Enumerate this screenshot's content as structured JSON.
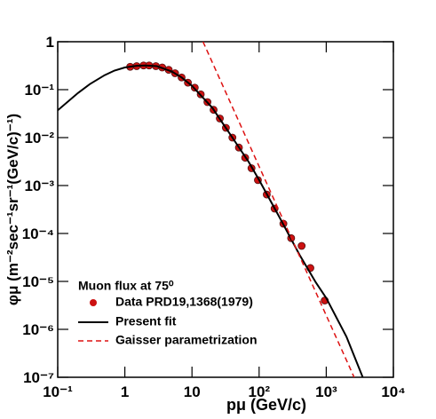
{
  "chart_data": {
    "type": "line",
    "xlabel": "pμ (GeV/c)",
    "ylabel": "φμ (m⁻²sec⁻¹sr⁻¹(GeV/c)⁻¹)",
    "legend_title": "Muon flux at 75⁰",
    "xscale": "log",
    "yscale": "log",
    "xlim": [
      0.1,
      10000
    ],
    "ylim": [
      1e-07,
      1
    ],
    "xticks": [
      {
        "value": 0.1,
        "label": "10⁻¹"
      },
      1,
      10,
      {
        "value": 100,
        "label": "10²"
      },
      {
        "value": 1000,
        "label": "10³"
      },
      {
        "value": 10000,
        "label": "10⁴"
      }
    ],
    "yticks": [
      {
        "value": 1e-07,
        "label": "10⁻⁷"
      },
      {
        "value": 1e-06,
        "label": "10⁻⁶"
      },
      {
        "value": 1e-05,
        "label": "10⁻⁵"
      },
      {
        "value": 0.0001,
        "label": "10⁻⁴"
      },
      {
        "value": 0.001,
        "label": "10⁻³"
      },
      {
        "value": 0.01,
        "label": "10⁻²"
      },
      {
        "value": 0.1,
        "label": "10⁻¹"
      },
      1
    ],
    "series": [
      {
        "name": "Data PRD19,1368(1979)",
        "color": "#cc1111",
        "style": "markers",
        "x": [
          1.2,
          1.5,
          1.9,
          2.3,
          2.9,
          3.6,
          4.5,
          5.6,
          7.0,
          8.7,
          11,
          13.5,
          17,
          21,
          26,
          32,
          40,
          50,
          62,
          77,
          96,
          130,
          170,
          230,
          300,
          430,
          580,
          950
        ],
        "values": [
          0.3,
          0.31,
          0.32,
          0.32,
          0.31,
          0.29,
          0.26,
          0.22,
          0.18,
          0.14,
          0.11,
          0.08,
          0.055,
          0.038,
          0.025,
          0.016,
          0.01,
          0.0062,
          0.0038,
          0.0023,
          0.0013,
          0.00065,
          0.00033,
          0.00016,
          8e-05,
          5.5e-05,
          1.9e-05,
          4e-06
        ]
      },
      {
        "name": "Present fit",
        "color": "#000000",
        "style": "solid",
        "x": [
          0.1,
          0.2,
          0.3,
          0.5,
          0.7,
          1,
          1.5,
          2,
          3,
          5,
          7,
          10,
          20,
          40,
          70,
          100,
          200,
          400,
          700,
          1000,
          2000,
          3500
        ],
        "values": [
          0.037,
          0.085,
          0.13,
          0.2,
          0.25,
          0.29,
          0.315,
          0.32,
          0.31,
          0.24,
          0.18,
          0.12,
          0.042,
          0.01,
          0.0031,
          0.0013,
          0.00022,
          3.6e-05,
          9.5e-06,
          4.5e-06,
          7e-07,
          1e-07
        ]
      },
      {
        "name": "Gaisser parametrization",
        "color": "#dd1111",
        "style": "dashed",
        "x": [
          14.6,
          100,
          2600
        ],
        "values": [
          1,
          0.0025,
          1e-07
        ]
      }
    ]
  }
}
